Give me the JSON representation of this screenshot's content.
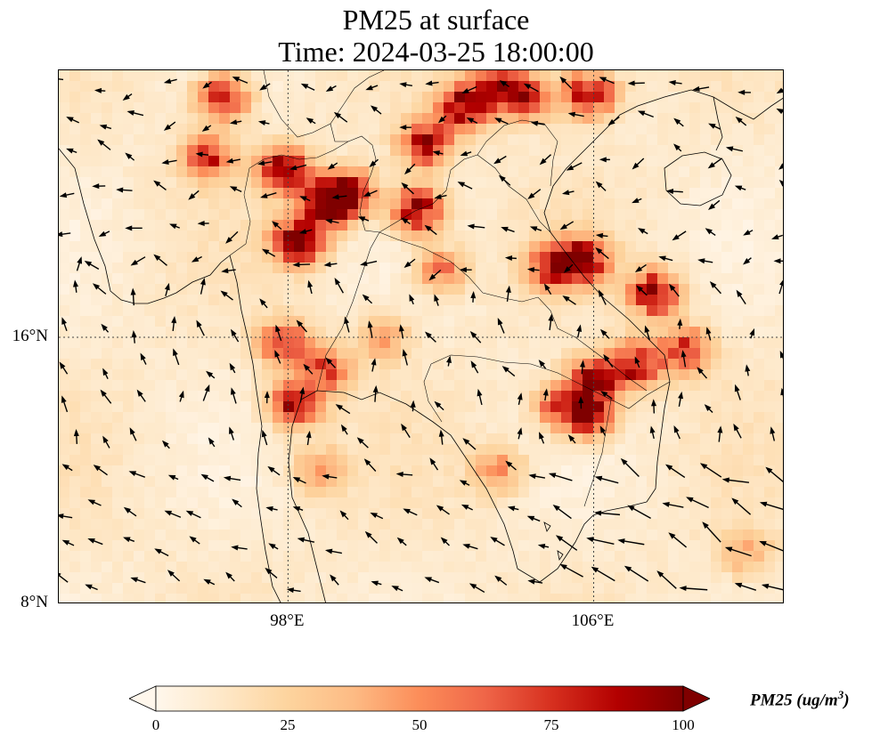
{
  "title": {
    "line1": "PM25 at surface",
    "line2": "Time: 2024-03-25 18:00:00"
  },
  "map": {
    "lon_range": [
      92.0,
      111.0
    ],
    "lat_range": [
      8.0,
      24.0
    ],
    "lat_ticks": [
      {
        "value": 16,
        "label": "16°N"
      },
      {
        "value": 8,
        "label": "8°N"
      }
    ],
    "lon_ticks": [
      {
        "value": 98,
        "label": "98°E"
      },
      {
        "value": 106,
        "label": "106°E"
      }
    ],
    "gridlines": "dotted",
    "hotspots": [
      {
        "lon": 96.3,
        "lat": 23.2,
        "v": 75
      },
      {
        "lon": 95.9,
        "lat": 21.4,
        "v": 65
      },
      {
        "lon": 97.9,
        "lat": 21.0,
        "v": 85
      },
      {
        "lon": 98.3,
        "lat": 18.9,
        "v": 95
      },
      {
        "lon": 99.6,
        "lat": 20.3,
        "v": 90
      },
      {
        "lon": 99.0,
        "lat": 20.0,
        "v": 85
      },
      {
        "lon": 101.4,
        "lat": 19.8,
        "v": 85
      },
      {
        "lon": 101.6,
        "lat": 21.8,
        "v": 80
      },
      {
        "lon": 102.6,
        "lat": 22.9,
        "v": 85
      },
      {
        "lon": 103.5,
        "lat": 23.5,
        "v": 70
      },
      {
        "lon": 105.9,
        "lat": 23.3,
        "v": 85
      },
      {
        "lon": 104.3,
        "lat": 23.2,
        "v": 60
      },
      {
        "lon": 97.9,
        "lat": 15.8,
        "v": 70
      },
      {
        "lon": 98.2,
        "lat": 14.0,
        "v": 75
      },
      {
        "lon": 99.0,
        "lat": 15.0,
        "v": 55
      },
      {
        "lon": 105.7,
        "lat": 18.3,
        "v": 85
      },
      {
        "lon": 104.9,
        "lat": 18.1,
        "v": 60
      },
      {
        "lon": 107.6,
        "lat": 17.3,
        "v": 85
      },
      {
        "lon": 106.0,
        "lat": 14.7,
        "v": 85
      },
      {
        "lon": 107.1,
        "lat": 15.2,
        "v": 75
      },
      {
        "lon": 105.9,
        "lat": 13.6,
        "v": 70
      },
      {
        "lon": 105.1,
        "lat": 13.9,
        "v": 55
      },
      {
        "lon": 108.4,
        "lat": 15.6,
        "v": 65
      },
      {
        "lon": 102.0,
        "lat": 18.0,
        "v": 50
      },
      {
        "lon": 100.5,
        "lat": 16.0,
        "v": 35
      },
      {
        "lon": 103.5,
        "lat": 12.0,
        "v": 40
      },
      {
        "lon": 98.8,
        "lat": 12.0,
        "v": 35
      },
      {
        "lon": 110.0,
        "lat": 9.5,
        "v": 30
      }
    ]
  },
  "colorbar": {
    "min": 0,
    "max": 100,
    "extend": "both",
    "colormap": "OrRd",
    "stops": [
      "#fff7ec",
      "#fee8c8",
      "#fdd49e",
      "#fdbb84",
      "#fc8d59",
      "#ef6548",
      "#d7301f",
      "#b30000",
      "#7f0000"
    ],
    "ticks": [
      "0",
      "25",
      "50",
      "75",
      "100"
    ],
    "label_main": "PM25 (ug/m",
    "label_sup": "3",
    "label_end": ")"
  }
}
